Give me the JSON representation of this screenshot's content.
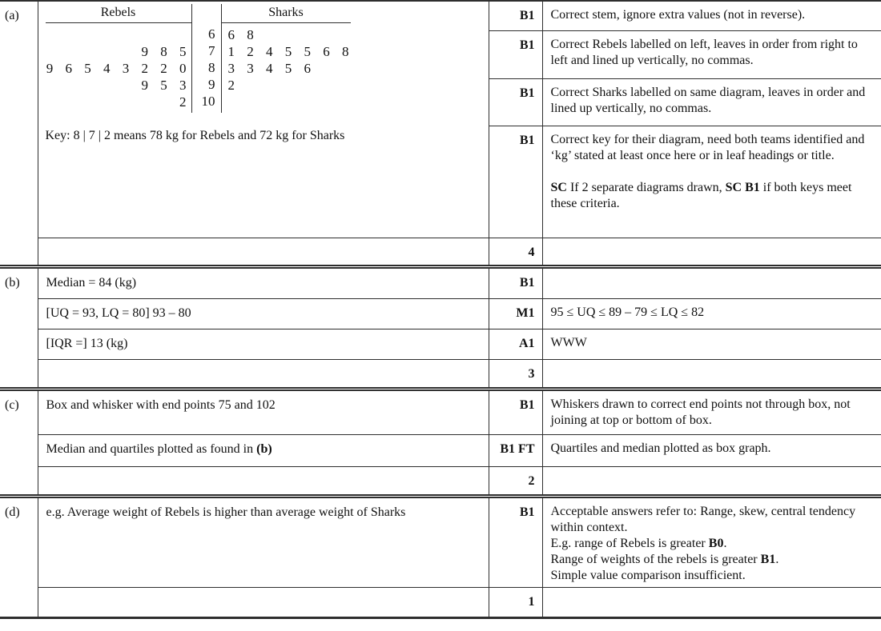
{
  "parts": [
    {
      "label": "(a)",
      "diagram": {
        "left_title": "Rebels",
        "right_title": "Sharks",
        "rows": [
          {
            "left": "",
            "stem": "6",
            "right": "6 8"
          },
          {
            "left": "9 8 5",
            "stem": "7",
            "right": "1 2 4 5 5 6 8"
          },
          {
            "left": "9 6 5 4 3 2 2 0",
            "stem": "8",
            "right": "3 3 4 5 6"
          },
          {
            "left": "9 5 3",
            "stem": "9",
            "right": "2"
          },
          {
            "left": "2",
            "stem": "10",
            "right": ""
          }
        ],
        "key": "Key: 8 | 7 | 2 means 78 kg for Rebels and 72 kg for Sharks"
      },
      "rows": [
        {
          "mark": "B1",
          "note": "Correct stem, ignore extra values (not in reverse)."
        },
        {
          "mark": "B1",
          "note": "Correct Rebels labelled on left, leaves in order from right to left and lined up vertically, no commas."
        },
        {
          "mark": "B1",
          "note": "Correct Sharks labelled on same diagram, leaves in order and lined up vertically, no commas."
        },
        {
          "mark": "B1",
          "note": [
            {
              "t": "Correct key for their diagram, need both teams identified and ‘kg’ stated at least once here or in leaf headings or title."
            },
            {
              "br": true
            },
            {
              "br": true
            },
            {
              "t": "SC",
              "b": true
            },
            {
              "t": " If 2 separate diagrams drawn, "
            },
            {
              "t": "SC B1",
              "b": true
            },
            {
              "t": " if both keys meet these criteria."
            }
          ]
        }
      ],
      "total": "4"
    },
    {
      "label": "(b)",
      "rows": [
        {
          "work": "Median = 84 (kg)",
          "mark": "B1",
          "note": ""
        },
        {
          "work": "[UQ = 93, LQ = 80] 93 – 80",
          "mark": "M1",
          "note": "95 ≤ UQ ≤ 89 – 79 ≤ LQ ≤ 82"
        },
        {
          "work": "[IQR =] 13 (kg)",
          "mark": "A1",
          "note": "WWW"
        }
      ],
      "total": "3"
    },
    {
      "label": "(c)",
      "rows": [
        {
          "work": "Box and whisker with end points 75 and 102",
          "mark": "B1",
          "note": "Whiskers drawn to correct end points not through box, not joining at top or bottom of box."
        },
        {
          "work": [
            {
              "t": "Median and quartiles plotted as found in "
            },
            {
              "t": "(b)",
              "b": true
            }
          ],
          "mark": "B1 FT",
          "note": "Quartiles and median plotted as box graph."
        }
      ],
      "total": "2"
    },
    {
      "label": "(d)",
      "rows": [
        {
          "work": "e.g. Average weight of Rebels is higher than average weight of Sharks",
          "mark": "B1",
          "note": [
            {
              "t": "Acceptable answers refer to: Range, skew, central tendency within context."
            },
            {
              "br": true
            },
            {
              "t": "E.g. range of Rebels is greater "
            },
            {
              "t": "B0",
              "b": true
            },
            {
              "t": "."
            },
            {
              "br": true
            },
            {
              "t": "Range of weights of the rebels is greater "
            },
            {
              "t": "B1",
              "b": true
            },
            {
              "t": "."
            },
            {
              "br": true
            },
            {
              "t": "Simple value comparison insufficient."
            }
          ]
        }
      ],
      "total": "1"
    }
  ]
}
